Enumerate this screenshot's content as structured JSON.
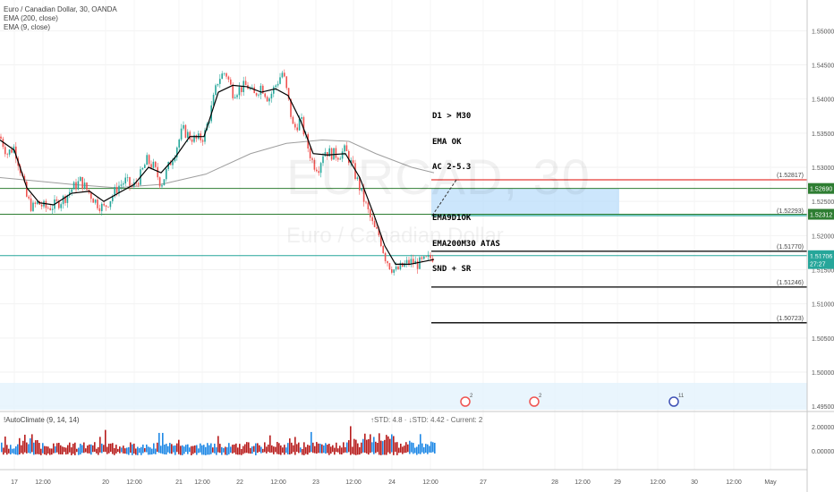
{
  "legend": {
    "title": "Euro / Canadian Dollar, 30, OANDA",
    "ema200": "EMA (200, close)",
    "ema9": "EMA (9, close)"
  },
  "watermark": {
    "symbol": "EURCAD, 30",
    "name": "Euro / Canadian Dollar"
  },
  "notes": [
    "D1 > M30",
    "EMA OK",
    "AC 2-5.3",
    "",
    "EMA9D1OK",
    "EMA200M30 ATAS",
    "SND + SR"
  ],
  "subpanel": {
    "legend": "!AutoClimate (9, 14, 14)",
    "readout": "↑STD: 4.8 · ↓STD: 4.42 - Current: 2",
    "axis_labels": [
      "2.00000",
      "0.00000"
    ]
  },
  "price_axis": {
    "ticks": [
      "1.55000",
      "1.54500",
      "1.54000",
      "1.53500",
      "1.53000",
      "1.52500",
      "1.52000",
      "1.51500",
      "1.51000",
      "1.50500",
      "1.50000",
      "1.49500"
    ],
    "badges": [
      {
        "text": "1.52690",
        "color": "#2e7d32",
        "price": 1.5269
      },
      {
        "text": "1.52312",
        "color": "#2e7d32",
        "price": 1.52312
      },
      {
        "text": "1.51706",
        "color": "#26a69a",
        "price": 1.51706
      },
      {
        "text": "27:27",
        "color": "#26a69a",
        "price": 1.5159
      }
    ]
  },
  "time_axis": {
    "labels": [
      "17",
      "12:00",
      "20",
      "12:00",
      "21",
      "12:00",
      "22",
      "12:00",
      "23",
      "12:00",
      "24",
      "12:00",
      "27",
      "28",
      "12:00",
      "29",
      "12:00",
      "30",
      "12:00",
      "May"
    ]
  },
  "levels": [
    {
      "label": "(1.52817)",
      "price": 1.52817,
      "color": "#e53935"
    },
    {
      "label": "(1.52293)",
      "price": 1.52293,
      "color": "#26a69a"
    },
    {
      "label": "(1.51770)",
      "price": 1.5177,
      "color": "#000000"
    },
    {
      "label": "(1.51246)",
      "price": 1.51246,
      "color": "#000000"
    },
    {
      "label": "(1.50723)",
      "price": 1.50723,
      "color": "#000000"
    }
  ],
  "horizontal_lines": [
    {
      "price": 1.5269,
      "color": "#2e7d32"
    },
    {
      "price": 1.52312,
      "color": "#2e7d32"
    },
    {
      "price": 1.51706,
      "color": "#26a69a"
    }
  ],
  "event_markers": [
    "2",
    "2",
    "11"
  ],
  "chart_data": {
    "type": "candlestick",
    "ylim": [
      1.4945,
      1.5545
    ],
    "colors": {
      "up": "#26a69a",
      "down": "#ef5350",
      "ema9": "#000000",
      "ema200": "#9e9e9e",
      "zone": "#bbdefb"
    },
    "path": [
      [
        0,
        1.5345
      ],
      [
        8,
        1.532
      ],
      [
        16,
        1.533
      ],
      [
        24,
        1.529
      ],
      [
        30,
        1.5255
      ],
      [
        36,
        1.524
      ],
      [
        42,
        1.5248
      ],
      [
        52,
        1.524
      ],
      [
        62,
        1.5245
      ],
      [
        72,
        1.5255
      ],
      [
        80,
        1.5268
      ],
      [
        90,
        1.528
      ],
      [
        100,
        1.5262
      ],
      [
        108,
        1.5248
      ],
      [
        116,
        1.524
      ],
      [
        124,
        1.5255
      ],
      [
        132,
        1.5272
      ],
      [
        140,
        1.528
      ],
      [
        148,
        1.527
      ],
      [
        156,
        1.5285
      ],
      [
        164,
        1.531
      ],
      [
        172,
        1.53
      ],
      [
        180,
        1.5275
      ],
      [
        188,
        1.53
      ],
      [
        196,
        1.5325
      ],
      [
        204,
        1.5355
      ],
      [
        212,
        1.5345
      ],
      [
        220,
        1.534
      ],
      [
        228,
        1.5345
      ],
      [
        236,
        1.5385
      ],
      [
        244,
        1.543
      ],
      [
        252,
        1.544
      ],
      [
        260,
        1.541
      ],
      [
        268,
        1.5415
      ],
      [
        276,
        1.542
      ],
      [
        284,
        1.5405
      ],
      [
        292,
        1.542
      ],
      [
        300,
        1.54
      ],
      [
        308,
        1.542
      ],
      [
        316,
        1.544
      ],
      [
        322,
        1.54
      ],
      [
        328,
        1.5355
      ],
      [
        336,
        1.537
      ],
      [
        344,
        1.533
      ],
      [
        350,
        1.5305
      ],
      [
        356,
        1.53
      ],
      [
        362,
        1.5325
      ],
      [
        370,
        1.532
      ],
      [
        378,
        1.5318
      ],
      [
        386,
        1.5325
      ],
      [
        394,
        1.53
      ],
      [
        402,
        1.527
      ],
      [
        410,
        1.524
      ],
      [
        418,
        1.521
      ],
      [
        424,
        1.52
      ],
      [
        430,
        1.517
      ],
      [
        436,
        1.5155
      ],
      [
        442,
        1.5148
      ],
      [
        450,
        1.5155
      ],
      [
        458,
        1.5162
      ],
      [
        466,
        1.5158
      ],
      [
        474,
        1.5162
      ],
      [
        482,
        1.5168
      ],
      [
        485,
        1.517
      ]
    ],
    "ema9": [
      [
        0,
        1.534
      ],
      [
        16,
        1.5325
      ],
      [
        30,
        1.527
      ],
      [
        44,
        1.5248
      ],
      [
        60,
        1.5245
      ],
      [
        80,
        1.5262
      ],
      [
        100,
        1.5265
      ],
      [
        116,
        1.525
      ],
      [
        132,
        1.5262
      ],
      [
        150,
        1.5275
      ],
      [
        166,
        1.53
      ],
      [
        180,
        1.5292
      ],
      [
        196,
        1.5315
      ],
      [
        212,
        1.5345
      ],
      [
        228,
        1.5345
      ],
      [
        244,
        1.541
      ],
      [
        260,
        1.542
      ],
      [
        276,
        1.5418
      ],
      [
        292,
        1.541
      ],
      [
        308,
        1.5415
      ],
      [
        322,
        1.5405
      ],
      [
        336,
        1.5368
      ],
      [
        350,
        1.532
      ],
      [
        366,
        1.5318
      ],
      [
        386,
        1.532
      ],
      [
        402,
        1.5285
      ],
      [
        418,
        1.523
      ],
      [
        430,
        1.5185
      ],
      [
        442,
        1.5158
      ],
      [
        458,
        1.5158
      ],
      [
        485,
        1.5165
      ]
    ],
    "ema200": [
      [
        0,
        1.5285
      ],
      [
        40,
        1.528
      ],
      [
        80,
        1.5275
      ],
      [
        130,
        1.527
      ],
      [
        180,
        1.5275
      ],
      [
        230,
        1.529
      ],
      [
        280,
        1.532
      ],
      [
        320,
        1.5335
      ],
      [
        360,
        1.534
      ],
      [
        390,
        1.5338
      ],
      [
        420,
        1.532
      ],
      [
        460,
        1.53
      ],
      [
        485,
        1.5292
      ]
    ]
  }
}
